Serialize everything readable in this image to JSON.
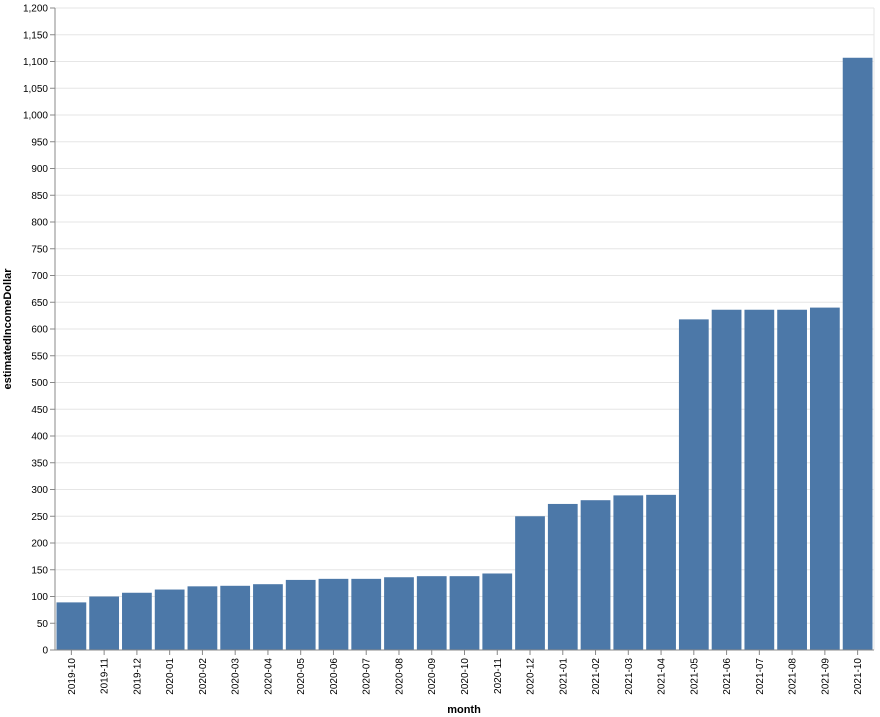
{
  "chart_data": {
    "type": "bar",
    "title": "",
    "xlabel": "month",
    "ylabel": "estimatedIncomeDollar",
    "ylim": [
      0,
      1200
    ],
    "ytick_step": 50,
    "grid": true,
    "bar_color": "#4c78a8",
    "grid_color": "#e6e6e6",
    "axis_color": "#888888",
    "categories": [
      "2019-10",
      "2019-11",
      "2019-12",
      "2020-01",
      "2020-02",
      "2020-03",
      "2020-04",
      "2020-05",
      "2020-06",
      "2020-07",
      "2020-08",
      "2020-09",
      "2020-10",
      "2020-11",
      "2020-12",
      "2021-01",
      "2021-02",
      "2021-03",
      "2021-04",
      "2021-05",
      "2021-06",
      "2021-07",
      "2021-08",
      "2021-09",
      "2021-10"
    ],
    "values": [
      89,
      100,
      107,
      113,
      119,
      120,
      123,
      131,
      133,
      133,
      136,
      138,
      138,
      143,
      250,
      273,
      280,
      289,
      290,
      618,
      636,
      636,
      636,
      640,
      1107
    ]
  }
}
